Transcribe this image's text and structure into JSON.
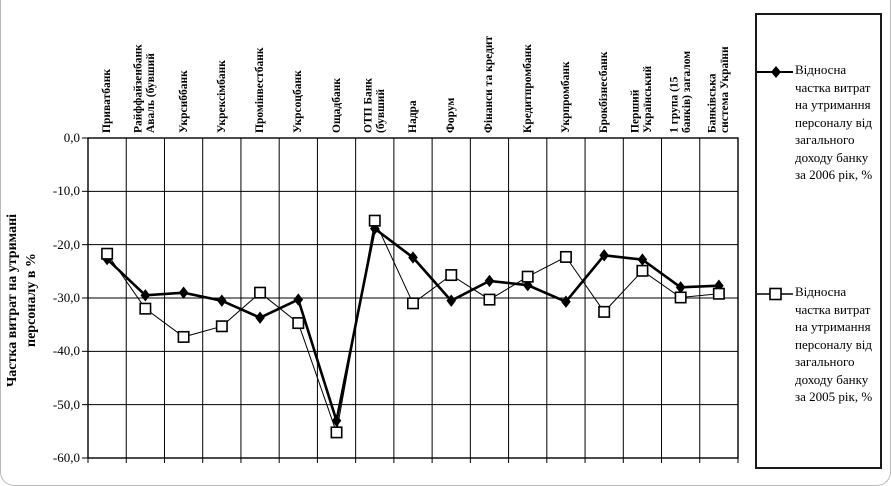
{
  "chart_data": {
    "type": "line",
    "title": "",
    "ylabel": "Частка витрат на утримані\nперсоналу в %",
    "ylim": [
      -60,
      0
    ],
    "ytick_step": 10,
    "ytick_labels": [
      "0,0",
      "-10,0",
      "-20,0",
      "-30,0",
      "-40,0",
      "-50,0",
      "-60,0"
    ],
    "grid": true,
    "legend_position": "right",
    "categories": [
      "Приватбанк",
      "Райффайзенбанк\nАваль (бувший",
      "Укрсиббанк",
      "Укрексімбанк",
      "Промінвестбанк",
      "Укрсоцбанк",
      "Ощадбанк",
      "ОТП Банк\n(бувший",
      "Надра",
      "Форум",
      "Фінанси та кредит",
      "Кредитпромбанк",
      "Укрпромбанк",
      "Брокбізнесбанк",
      "Перший\nУкраїнський",
      "1 група (15\nбанків) загалом",
      "Банківська\nсистема України"
    ],
    "series": [
      {
        "name": "Відносна частка витрат на утримання персоналу від загального доходу банку за 2006 рік, %",
        "marker": "filled-diamond",
        "values": [
          -22.7,
          -29.5,
          -29.0,
          -30.5,
          -33.7,
          -30.3,
          -53.0,
          -17.0,
          -22.4,
          -30.5,
          -26.8,
          -27.6,
          -30.7,
          -22.0,
          -22.8,
          -28.0,
          -27.7
        ]
      },
      {
        "name": "Відносна частка витрат на утримання персоналу від загального доходу банку за 2005 рік, %",
        "marker": "open-square",
        "values": [
          -21.7,
          -32.0,
          -37.3,
          -35.3,
          -29.0,
          -34.7,
          -55.2,
          -15.5,
          -31.0,
          -25.7,
          -30.3,
          -26.0,
          -22.3,
          -32.6,
          -24.9,
          -29.9,
          -29.2
        ]
      }
    ]
  },
  "colors": {
    "line": "#000000",
    "grid": "#000000",
    "marker_fill": "#ffffff",
    "background": "#ffffff",
    "legend_border": "#1a1a1a",
    "page_border": "#b9b9b9"
  }
}
